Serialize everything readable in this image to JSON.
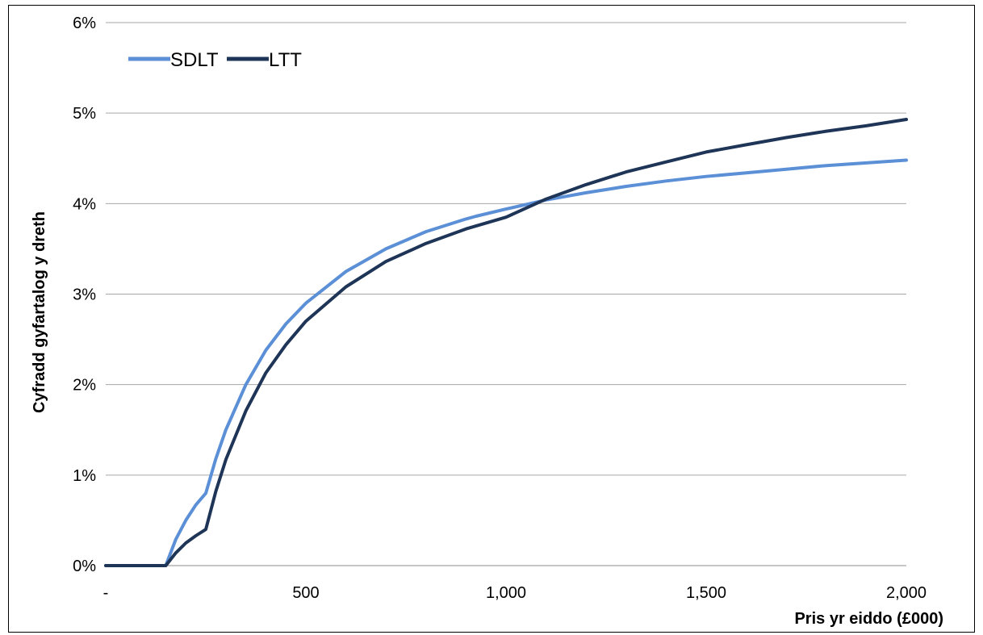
{
  "chart_data": {
    "type": "line",
    "title": "",
    "xlabel": "Pris yr eiddo (£000)",
    "ylabel": "Cyfradd gyfartalog y dreth",
    "xlim": [
      0,
      2000
    ],
    "ylim": [
      0,
      6
    ],
    "x_ticks": [
      0,
      500,
      1000,
      1500,
      2000
    ],
    "x_tick_labels": [
      "-",
      "500",
      "1,000",
      "1,500",
      "2,000"
    ],
    "y_ticks": [
      0,
      1,
      2,
      3,
      4,
      5,
      6
    ],
    "y_tick_labels": [
      "0%",
      "1%",
      "2%",
      "3%",
      "4%",
      "5%",
      "6%"
    ],
    "grid": "horizontal",
    "legend_position": "top-left",
    "series": [
      {
        "name": "SDLT",
        "color": "#5B8FD6",
        "x": [
          0,
          125,
          150,
          175,
          200,
          225,
          250,
          275,
          300,
          350,
          400,
          450,
          500,
          600,
          700,
          800,
          900,
          925,
          1000,
          1100,
          1200,
          1300,
          1400,
          1500,
          1600,
          1700,
          1800,
          1900,
          2000
        ],
        "y": [
          0,
          0,
          0,
          0.29,
          0.5,
          0.67,
          0.8,
          1.18,
          1.5,
          2.0,
          2.38,
          2.67,
          2.9,
          3.25,
          3.5,
          3.69,
          3.83,
          3.86,
          3.94,
          4.04,
          4.12,
          4.19,
          4.25,
          4.3,
          4.34,
          4.38,
          4.42,
          4.45,
          4.48
        ]
      },
      {
        "name": "LTT",
        "color": "#1F3557",
        "x": [
          0,
          125,
          150,
          175,
          200,
          225,
          250,
          275,
          300,
          350,
          400,
          450,
          500,
          600,
          700,
          800,
          900,
          1000,
          1100,
          1200,
          1300,
          1400,
          1500,
          1600,
          1700,
          1800,
          1900,
          2000
        ],
        "y": [
          0,
          0,
          0,
          0.14,
          0.25,
          0.33,
          0.4,
          0.82,
          1.17,
          1.71,
          2.13,
          2.44,
          2.7,
          3.08,
          3.36,
          3.56,
          3.72,
          3.85,
          4.05,
          4.21,
          4.35,
          4.46,
          4.57,
          4.65,
          4.73,
          4.8,
          4.86,
          4.93
        ]
      }
    ]
  }
}
